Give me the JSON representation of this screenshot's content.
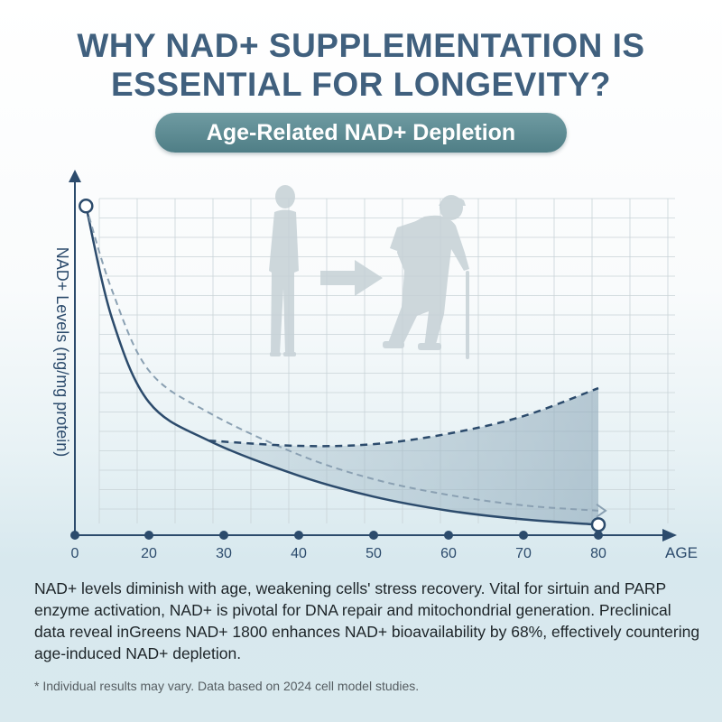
{
  "header": {
    "title_line1": "WHY NAD+ SUPPLEMENTATION IS",
    "title_line2": "ESSENTIAL FOR LONGEVITY?",
    "subtitle": "Age-Related NAD+ Depletion"
  },
  "chart_data": {
    "type": "line",
    "ylabel": "NAD+ Levels (ng/mg protein)",
    "xlabel": "AGE",
    "x_ticks": [
      0,
      20,
      30,
      40,
      50,
      60,
      70,
      80
    ],
    "xlim": [
      0,
      80
    ],
    "ylim": [
      0,
      100
    ],
    "grid": true,
    "series": [
      {
        "style": "solid",
        "x": [
          3,
          10,
          20,
          28,
          40,
          50,
          60,
          70,
          80
        ],
        "y": [
          94,
          62,
          38,
          27,
          17,
          11,
          7,
          4.5,
          3
        ]
      },
      {
        "style": "dashed",
        "x": [
          3,
          10,
          20,
          28,
          40,
          50,
          60,
          70,
          80
        ],
        "y": [
          94,
          70,
          47,
          35,
          23,
          16,
          11.5,
          8.5,
          7
        ]
      },
      {
        "style": "dashed",
        "x": [
          28,
          40,
          50,
          60,
          70,
          80
        ],
        "y": [
          27,
          25.5,
          26,
          29,
          34,
          42
        ]
      }
    ],
    "markers": [
      {
        "x": 3,
        "y": 94
      },
      {
        "x": 80,
        "y": 3
      }
    ],
    "illustration": [
      "young-person-silhouette",
      "arrow-right-icon",
      "elderly-person-with-cane-silhouette"
    ]
  },
  "body": {
    "description": "NAD+ levels diminish with age, weakening cells' stress recovery. Vital for sirtuin and PARP enzyme activation, NAD+ is pivotal for DNA repair and mitochondrial generation. Preclinical data reveal inGreens NAD+ 1800 enhances NAD+ bioavailability by 68%, effectively countering age-induced NAD+ depletion.",
    "footnote": "* Individual results may vary. Data based on 2024 cell model studies."
  },
  "colors": {
    "title": "#40607e",
    "curve": "#2c4b6c",
    "pill": "#5a8990",
    "grid": "#c9d3d7"
  }
}
